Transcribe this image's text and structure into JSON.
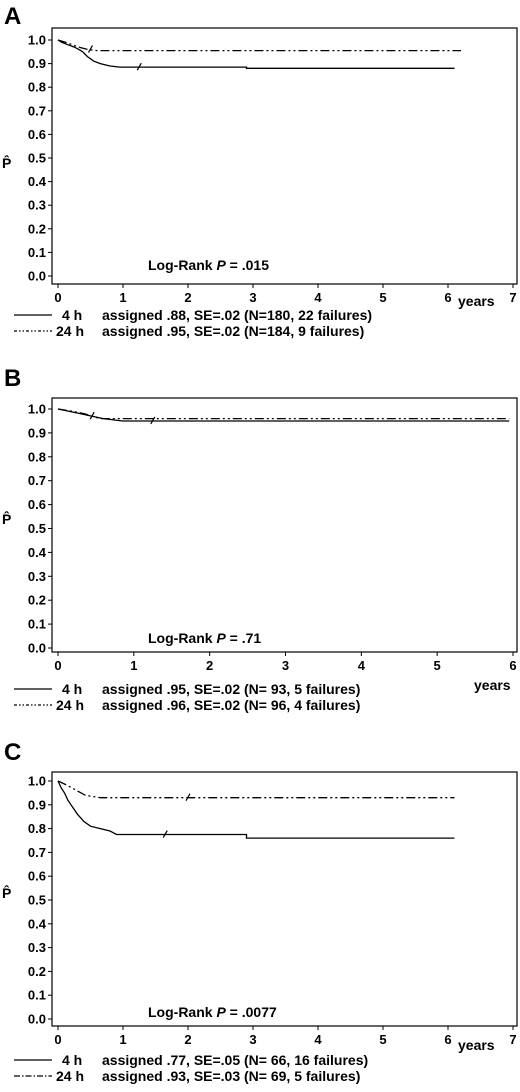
{
  "chart_data": [
    {
      "type": "line",
      "panel_label": "A",
      "xlabel": "years",
      "ylabel": "P̂",
      "xlim": [
        0,
        7
      ],
      "ylim": [
        0,
        1.0
      ],
      "xticks": [
        "0",
        "1",
        "2",
        "3",
        "4",
        "5",
        "6",
        "7"
      ],
      "yticks": [
        "0.0",
        "0.1",
        "0.2",
        "0.3",
        "0.4",
        "0.5",
        "0.6",
        "0.7",
        "0.8",
        "0.9",
        "1.0"
      ],
      "annotation_prefix": "Log-Rank ",
      "annotation_p": "P",
      "annotation_value": " = .015",
      "series": [
        {
          "legend_id": "4 h",
          "legend_text": "assigned .88, SE=.02 (N=180,  22 failures)",
          "style": "solid",
          "points": [
            [
              0,
              1.0
            ],
            [
              0.06,
              0.99
            ],
            [
              0.15,
              0.98
            ],
            [
              0.25,
              0.97
            ],
            [
              0.32,
              0.96
            ],
            [
              0.38,
              0.95
            ],
            [
              0.45,
              0.93
            ],
            [
              0.55,
              0.91
            ],
            [
              0.65,
              0.9
            ],
            [
              0.8,
              0.89
            ],
            [
              0.95,
              0.885
            ],
            [
              1.0,
              0.885
            ],
            [
              2.9,
              0.885
            ],
            [
              2.9,
              0.88
            ],
            [
              6.1,
              0.88
            ]
          ],
          "censor_x": [
            1.25
          ]
        },
        {
          "legend_id": "24 h",
          "legend_text": "assigned .95, SE=.02 (N=184,   9 failures)",
          "style": "dashdotdot",
          "points": [
            [
              0,
              1.0
            ],
            [
              0.12,
              0.99
            ],
            [
              0.22,
              0.98
            ],
            [
              0.32,
              0.97
            ],
            [
              0.45,
              0.96
            ],
            [
              0.6,
              0.955
            ],
            [
              6.2,
              0.955
            ]
          ],
          "censor_x": [
            0.5
          ]
        }
      ]
    },
    {
      "type": "line",
      "panel_label": "B",
      "xlabel": "years",
      "ylabel": "P̂",
      "xlim": [
        0,
        6
      ],
      "ylim": [
        0,
        1.0
      ],
      "xticks": [
        "0",
        "1",
        "2",
        "3",
        "4",
        "5",
        "6"
      ],
      "yticks": [
        "0.0",
        "0.1",
        "0.2",
        "0.3",
        "0.4",
        "0.5",
        "0.6",
        "0.7",
        "0.8",
        "0.9",
        "1.0"
      ],
      "annotation_prefix": "Log-Rank ",
      "annotation_p": "P",
      "annotation_value": " = .71",
      "series": [
        {
          "legend_id": "4 h",
          "legend_text": "assigned .95, SE=.02 (N= 93,   5 failures)",
          "style": "solid",
          "points": [
            [
              0,
              1.0
            ],
            [
              0.15,
              0.99
            ],
            [
              0.3,
              0.98
            ],
            [
              0.45,
              0.97
            ],
            [
              0.6,
              0.96
            ],
            [
              0.85,
              0.95
            ],
            [
              5.95,
              0.95
            ]
          ],
          "censor_x": [
            1.25
          ]
        },
        {
          "legend_id": "24 h",
          "legend_text": "assigned .96, SE=.02 (N= 96,   4 failures)",
          "style": "dashdotdot",
          "points": [
            [
              0,
              1.0
            ],
            [
              0.2,
              0.99
            ],
            [
              0.35,
              0.98
            ],
            [
              0.45,
              0.97
            ],
            [
              0.55,
              0.96
            ],
            [
              5.95,
              0.96
            ]
          ],
          "censor_x": [
            0.45
          ]
        }
      ]
    },
    {
      "type": "line",
      "panel_label": "C",
      "xlabel": "years",
      "ylabel": "P̂",
      "xlim": [
        0,
        7
      ],
      "ylim": [
        0,
        1.0
      ],
      "xticks": [
        "0",
        "1",
        "2",
        "3",
        "4",
        "5",
        "6",
        "7"
      ],
      "yticks": [
        "0.0",
        "0.1",
        "0.2",
        "0.3",
        "0.4",
        "0.5",
        "0.6",
        "0.7",
        "0.8",
        "0.9",
        "1.0"
      ],
      "annotation_prefix": "Log-Rank ",
      "annotation_p": "P",
      "annotation_value": " = .0077",
      "series": [
        {
          "legend_id": "4 h",
          "legend_text": "assigned .77, SE=.05 (N= 66,  16 failures)",
          "style": "solid",
          "points": [
            [
              0,
              1.0
            ],
            [
              0.05,
              0.97
            ],
            [
              0.1,
              0.95
            ],
            [
              0.15,
              0.92
            ],
            [
              0.2,
              0.9
            ],
            [
              0.3,
              0.86
            ],
            [
              0.4,
              0.83
            ],
            [
              0.5,
              0.81
            ],
            [
              0.65,
              0.8
            ],
            [
              0.8,
              0.79
            ],
            [
              0.9,
              0.775
            ],
            [
              1.0,
              0.775
            ],
            [
              2.9,
              0.775
            ],
            [
              2.9,
              0.76
            ],
            [
              6.1,
              0.76
            ]
          ],
          "censor_x": [
            1.65
          ]
        },
        {
          "legend_id": "24 h",
          "legend_text": "assigned .93, SE=.03 (N= 69,   5 failures)",
          "style": "dashdotdot",
          "points": [
            [
              0,
              1.0
            ],
            [
              0.12,
              0.985
            ],
            [
              0.22,
              0.97
            ],
            [
              0.32,
              0.955
            ],
            [
              0.42,
              0.94
            ],
            [
              0.65,
              0.93
            ],
            [
              6.1,
              0.93
            ]
          ],
          "censor_x": [
            2.0
          ]
        }
      ]
    }
  ]
}
